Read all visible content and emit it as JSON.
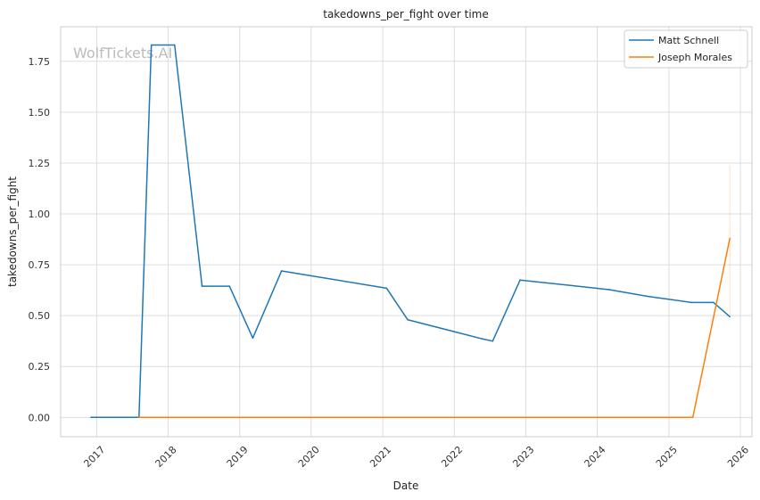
{
  "chart_data": {
    "type": "line",
    "title": "takedowns_per_fight over time",
    "xlabel": "Date",
    "ylabel": "takedowns_per_fight",
    "watermark": "WolfTickets.AI",
    "xlim": [
      "2016-07-01",
      "2026-03-01"
    ],
    "ylim": [
      -0.095,
      1.92
    ],
    "x_ticks": [
      "2017-01-01",
      "2018-01-01",
      "2019-01-01",
      "2020-01-01",
      "2021-01-01",
      "2022-01-01",
      "2023-01-01",
      "2024-01-01",
      "2025-01-01",
      "2026-01-01"
    ],
    "x_tick_labels": [
      "2017",
      "2018",
      "2019",
      "2020",
      "2021",
      "2022",
      "2023",
      "2024",
      "2025",
      "2026"
    ],
    "y_ticks": [
      0.0,
      0.25,
      0.5,
      0.75,
      1.0,
      1.25,
      1.5,
      1.75
    ],
    "y_tick_labels": [
      "0.00",
      "0.25",
      "0.50",
      "0.75",
      "1.00",
      "1.25",
      "1.50",
      "1.75"
    ],
    "grid": true,
    "legend_position": "top-right",
    "series": [
      {
        "name": "Matt Schnell",
        "color": "#1f77b4",
        "points": [
          {
            "x": "2016-12-03",
            "y": 0.0
          },
          {
            "x": "2017-08-05",
            "y": 0.0
          },
          {
            "x": "2017-10-07",
            "y": 1.83
          },
          {
            "x": "2018-02-03",
            "y": 1.83
          },
          {
            "x": "2018-06-23",
            "y": 0.645
          },
          {
            "x": "2018-11-10",
            "y": 0.645
          },
          {
            "x": "2019-03-09",
            "y": 0.39
          },
          {
            "x": "2019-08-03",
            "y": 0.72
          },
          {
            "x": "2021-01-20",
            "y": 0.635
          },
          {
            "x": "2021-05-08",
            "y": 0.48
          },
          {
            "x": "2022-05-28",
            "y": 0.385
          },
          {
            "x": "2022-07-16",
            "y": 0.375
          },
          {
            "x": "2022-12-03",
            "y": 0.675
          },
          {
            "x": "2024-03-02",
            "y": 0.628
          },
          {
            "x": "2024-09-14",
            "y": 0.595
          },
          {
            "x": "2025-04-26",
            "y": 0.565
          },
          {
            "x": "2025-08-16",
            "y": 0.565
          },
          {
            "x": "2025-11-08",
            "y": 0.495
          }
        ]
      },
      {
        "name": "Joseph Morales",
        "color": "#ff7f0e",
        "points": [
          {
            "x": "2017-08-05",
            "y": 0.0
          },
          {
            "x": "2025-05-03",
            "y": 0.0
          },
          {
            "x": "2025-11-08",
            "y": 0.88
          }
        ],
        "band": {
          "x": "2025-11-08",
          "y_low": 0.5,
          "y_high": 1.24
        }
      }
    ]
  }
}
